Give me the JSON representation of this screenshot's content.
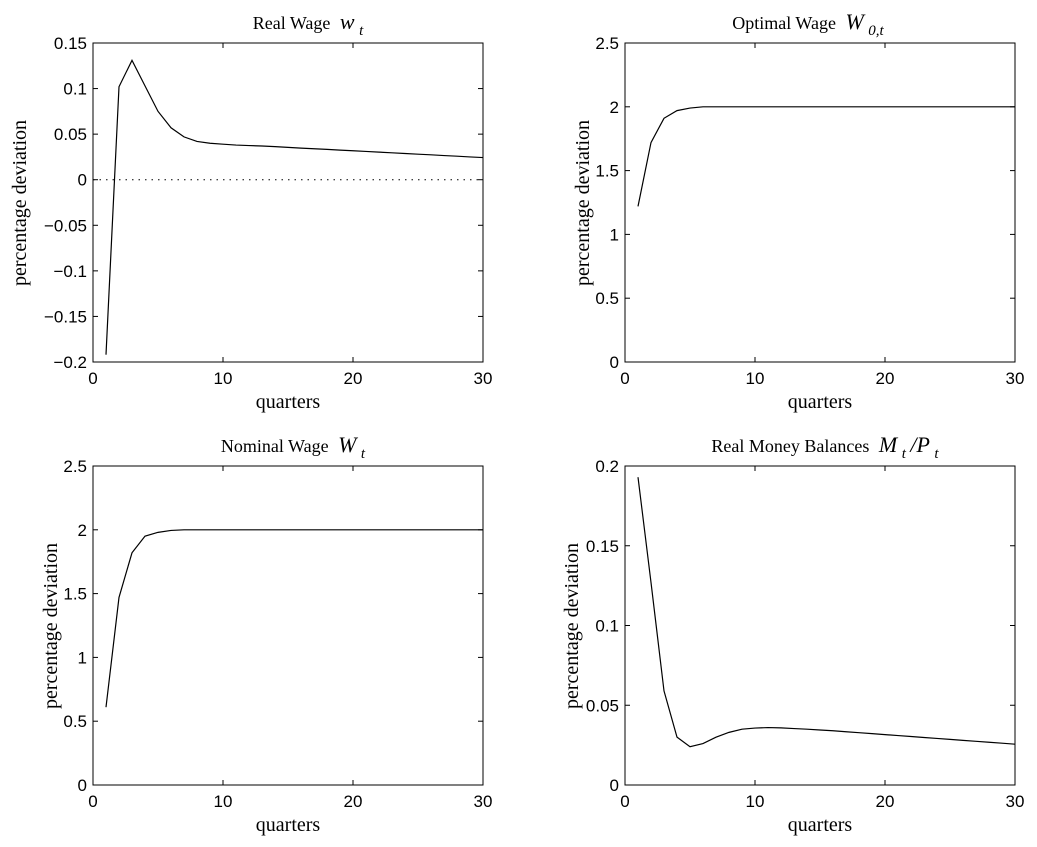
{
  "chart_data": [
    {
      "type": "line",
      "title": {
        "main": "Real Wage",
        "math": "w",
        "sub": "t"
      },
      "xlabel": "quarters",
      "ylabel": "percentage deviation",
      "xlim": [
        0,
        30
      ],
      "ylim": [
        -0.2,
        0.15
      ],
      "xticks": [
        0,
        10,
        20,
        30
      ],
      "xtick_labels": [
        "0",
        "10",
        "20",
        "30"
      ],
      "yticks": [
        -0.2,
        -0.15,
        -0.1,
        -0.05,
        0,
        0.05,
        0.1,
        0.15
      ],
      "ytick_labels": [
        "−0.2",
        "−0.15",
        "−0.1",
        "−0.05",
        "0",
        "0.05",
        "0.1",
        "0.15"
      ],
      "grid": false,
      "zero_line": true,
      "series": [
        {
          "x": [
            1,
            2,
            3,
            4,
            5,
            6,
            7,
            8,
            9,
            10,
            11,
            12,
            13,
            14,
            15,
            16,
            17,
            18,
            19,
            20,
            21,
            22,
            23,
            24,
            25,
            26,
            27,
            28,
            29,
            30
          ],
          "values": [
            -0.192,
            0.102,
            0.131,
            0.103,
            0.075,
            0.057,
            0.047,
            0.042,
            0.04,
            0.039,
            0.038,
            0.0375,
            0.037,
            0.0363,
            0.0355,
            0.0347,
            0.034,
            0.0333,
            0.0325,
            0.0318,
            0.031,
            0.0303,
            0.0295,
            0.0288,
            0.028,
            0.0273,
            0.0265,
            0.0258,
            0.025,
            0.0243
          ]
        }
      ]
    },
    {
      "type": "line",
      "title": {
        "main": "Optimal Wage",
        "math": "W",
        "sub": "0,t"
      },
      "xlabel": "quarters",
      "ylabel": "percentage deviation",
      "xlim": [
        0,
        30
      ],
      "ylim": [
        0,
        2.5
      ],
      "xticks": [
        0,
        10,
        20,
        30
      ],
      "xtick_labels": [
        "0",
        "10",
        "20",
        "30"
      ],
      "yticks": [
        0,
        0.5,
        1,
        1.5,
        2,
        2.5
      ],
      "ytick_labels": [
        "0",
        "0.5",
        "1",
        "1.5",
        "2",
        "2.5"
      ],
      "grid": false,
      "zero_line": false,
      "series": [
        {
          "x": [
            1,
            2,
            3,
            4,
            5,
            6,
            7,
            8,
            9,
            10,
            11,
            12,
            13,
            14,
            15,
            16,
            17,
            18,
            19,
            20,
            21,
            22,
            23,
            24,
            25,
            26,
            27,
            28,
            29,
            30
          ],
          "values": [
            1.22,
            1.72,
            1.91,
            1.97,
            1.99,
            2.0,
            2.0,
            2.0,
            2.0,
            2.0,
            2.0,
            2.0,
            2.0,
            2.0,
            2.0,
            2.0,
            2.0,
            2.0,
            2.0,
            2.0,
            2.0,
            2.0,
            2.0,
            2.0,
            2.0,
            2.0,
            2.0,
            2.0,
            2.0,
            2.0
          ]
        }
      ]
    },
    {
      "type": "line",
      "title": {
        "main": "Nominal Wage",
        "math": "W",
        "sub": "t"
      },
      "xlabel": "quarters",
      "ylabel": "percentage deviation",
      "xlim": [
        0,
        30
      ],
      "ylim": [
        0,
        2.5
      ],
      "xticks": [
        0,
        10,
        20,
        30
      ],
      "xtick_labels": [
        "0",
        "10",
        "20",
        "30"
      ],
      "yticks": [
        0,
        0.5,
        1,
        1.5,
        2,
        2.5
      ],
      "ytick_labels": [
        "0",
        "0.5",
        "1",
        "1.5",
        "2",
        "2.5"
      ],
      "grid": false,
      "zero_line": false,
      "series": [
        {
          "x": [
            1,
            2,
            3,
            4,
            5,
            6,
            7,
            8,
            9,
            10,
            11,
            12,
            13,
            14,
            15,
            16,
            17,
            18,
            19,
            20,
            21,
            22,
            23,
            24,
            25,
            26,
            27,
            28,
            29,
            30
          ],
          "values": [
            0.61,
            1.47,
            1.82,
            1.95,
            1.98,
            1.995,
            2.0,
            2.0,
            2.0,
            2.0,
            2.0,
            2.0,
            2.0,
            2.0,
            2.0,
            2.0,
            2.0,
            2.0,
            2.0,
            2.0,
            2.0,
            2.0,
            2.0,
            2.0,
            2.0,
            2.0,
            2.0,
            2.0,
            2.0,
            2.0
          ]
        }
      ]
    },
    {
      "type": "line",
      "title": {
        "main": "Real Money Balances",
        "math": "M",
        "sub": "t",
        "math2": "/P",
        "sub2": "t"
      },
      "xlabel": "quarters",
      "ylabel": "percentage deviation",
      "xlim": [
        0,
        30
      ],
      "ylim": [
        0,
        0.2
      ],
      "xticks": [
        0,
        10,
        20,
        30
      ],
      "xtick_labels": [
        "0",
        "10",
        "20",
        "30"
      ],
      "yticks": [
        0,
        0.05,
        0.1,
        0.15,
        0.2
      ],
      "ytick_labels": [
        "0",
        "0.05",
        "0.1",
        "0.15",
        "0.2"
      ],
      "grid": false,
      "zero_line": false,
      "series": [
        {
          "x": [
            1,
            2,
            3,
            4,
            5,
            6,
            7,
            8,
            9,
            10,
            11,
            12,
            13,
            14,
            15,
            16,
            17,
            18,
            19,
            20,
            21,
            22,
            23,
            24,
            25,
            26,
            27,
            28,
            29,
            30
          ],
          "values": [
            0.193,
            0.127,
            0.059,
            0.03,
            0.024,
            0.026,
            0.03,
            0.033,
            0.035,
            0.0357,
            0.036,
            0.0358,
            0.0354,
            0.035,
            0.0345,
            0.034,
            0.0334,
            0.0328,
            0.0322,
            0.0316,
            0.031,
            0.0304,
            0.0298,
            0.0292,
            0.0286,
            0.028,
            0.0274,
            0.0268,
            0.0262,
            0.0256
          ]
        }
      ]
    }
  ]
}
